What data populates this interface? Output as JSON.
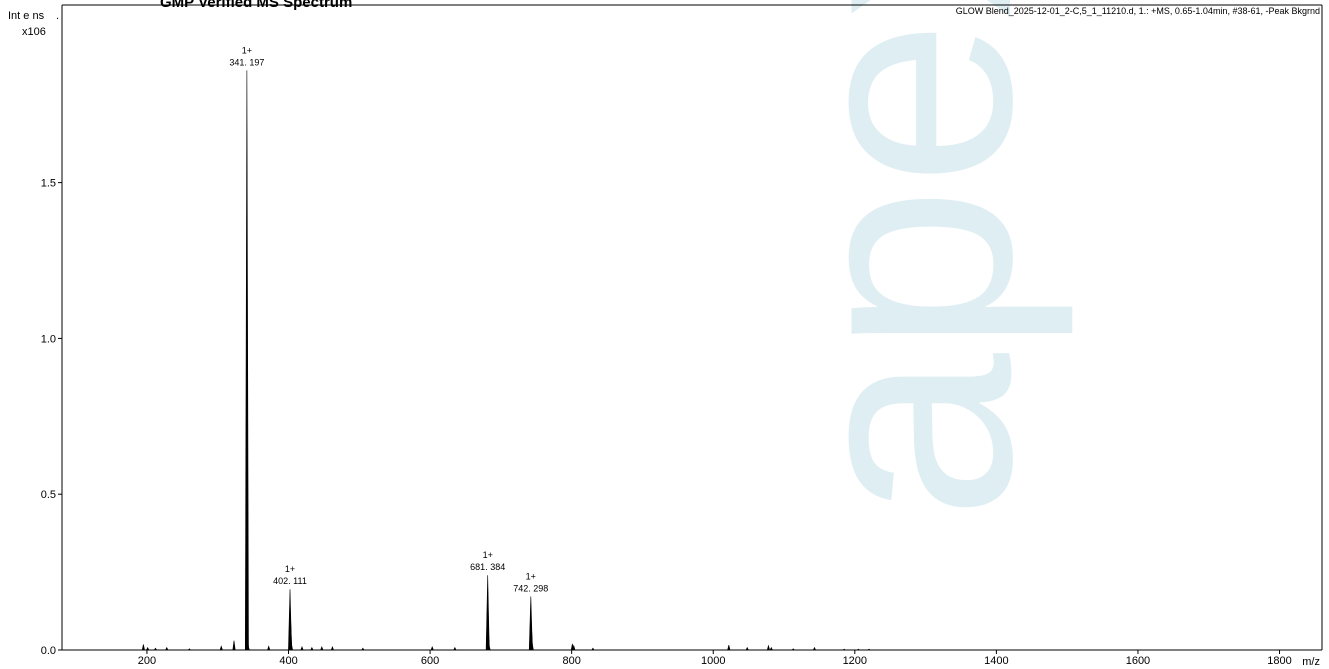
{
  "title": "GMP Verified MS Spectrum",
  "info": "GLOW Blend_2025-12-01_2-C,5_1_11210.d, 1.: +MS, 0.65-1.04min, #38-61, -Peak Bkgrnd",
  "watermark": "apex",
  "colors": {
    "trace": "#000000",
    "axis": "#000000",
    "watermark": "#b9dbe6"
  },
  "chart_data": {
    "type": "line",
    "xlabel": "m/z",
    "ylabel": "Int e ns",
    "ylabel_scale": "x106",
    "xlim": [
      80,
      1860
    ],
    "ylim": [
      0.0,
      2.07
    ],
    "xticks": [
      200,
      400,
      600,
      800,
      1000,
      1200,
      1400,
      1600,
      1800
    ],
    "yticks": [
      {
        "value": 0.0,
        "label": "0.0"
      },
      {
        "value": 0.5,
        "label": "0.5"
      },
      {
        "value": 1.0,
        "label": "1.0"
      },
      {
        "value": 1.5,
        "label": "1.5"
      }
    ],
    "peaks": [
      {
        "mz": 195,
        "intensity": 0.018
      },
      {
        "mz": 201,
        "intensity": 0.008
      },
      {
        "mz": 212,
        "intensity": 0.006
      },
      {
        "mz": 228,
        "intensity": 0.008
      },
      {
        "mz": 260,
        "intensity": 0.004
      },
      {
        "mz": 305,
        "intensity": 0.012
      },
      {
        "mz": 323,
        "intensity": 0.03
      },
      {
        "mz": 341.197,
        "intensity": 1.86
      },
      {
        "mz": 342.2,
        "intensity": 0.04
      },
      {
        "mz": 343.2,
        "intensity": 0.01
      },
      {
        "mz": 372,
        "intensity": 0.012
      },
      {
        "mz": 402.111,
        "intensity": 0.195
      },
      {
        "mz": 403.1,
        "intensity": 0.09
      },
      {
        "mz": 404.1,
        "intensity": 0.02
      },
      {
        "mz": 419,
        "intensity": 0.01
      },
      {
        "mz": 433,
        "intensity": 0.008
      },
      {
        "mz": 447,
        "intensity": 0.01
      },
      {
        "mz": 462,
        "intensity": 0.01
      },
      {
        "mz": 505,
        "intensity": 0.006
      },
      {
        "mz": 603,
        "intensity": 0.01
      },
      {
        "mz": 635,
        "intensity": 0.008
      },
      {
        "mz": 681.384,
        "intensity": 0.24
      },
      {
        "mz": 682.4,
        "intensity": 0.06
      },
      {
        "mz": 683.4,
        "intensity": 0.012
      },
      {
        "mz": 742.298,
        "intensity": 0.172
      },
      {
        "mz": 743.3,
        "intensity": 0.07
      },
      {
        "mz": 744.3,
        "intensity": 0.02
      },
      {
        "mz": 801,
        "intensity": 0.02
      },
      {
        "mz": 803,
        "intensity": 0.014
      },
      {
        "mz": 830,
        "intensity": 0.006
      },
      {
        "mz": 1022,
        "intensity": 0.016
      },
      {
        "mz": 1048,
        "intensity": 0.008
      },
      {
        "mz": 1078,
        "intensity": 0.014
      },
      {
        "mz": 1082,
        "intensity": 0.008
      },
      {
        "mz": 1113,
        "intensity": 0.004
      },
      {
        "mz": 1143,
        "intensity": 0.008
      },
      {
        "mz": 1185,
        "intensity": 0.003
      },
      {
        "mz": 1205,
        "intensity": 0.003
      },
      {
        "mz": 1220,
        "intensity": 0.003
      }
    ],
    "annotations": [
      {
        "mz": 341.197,
        "intensity": 1.86,
        "charge": "1+",
        "label": "341. 197"
      },
      {
        "mz": 402.111,
        "intensity": 0.195,
        "charge": "1+",
        "label": "402. 111"
      },
      {
        "mz": 681.384,
        "intensity": 0.24,
        "charge": "1+",
        "label": "681. 384"
      },
      {
        "mz": 742.298,
        "intensity": 0.172,
        "charge": "1+",
        "label": "742. 298"
      }
    ]
  }
}
